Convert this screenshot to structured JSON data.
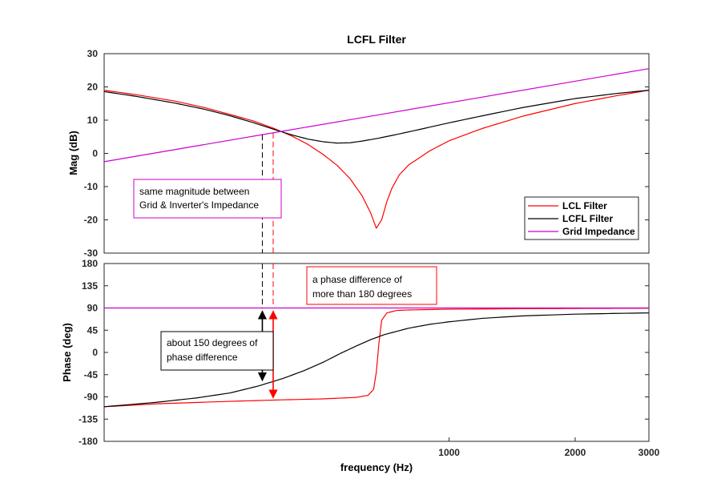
{
  "chart_data": [
    {
      "type": "line",
      "title": "LCFL Filter",
      "xlabel": "",
      "ylabel": "Mag (dB)",
      "xscale": "log",
      "xlim": [
        150,
        3000
      ],
      "ylim": [
        -30,
        30
      ],
      "yticks": [
        30,
        20,
        10,
        0,
        -10,
        -20,
        -30
      ],
      "tick_labels": [
        "30",
        "20",
        "10",
        "0",
        "-10",
        "-20",
        "-30"
      ],
      "legend_placement": "lower-right",
      "grid": false,
      "series": [
        {
          "name": "LCL Filter",
          "color": "#ff0000",
          "x": [
            150,
            180,
            220,
            260,
            300,
            340,
            380,
            420,
            460,
            500,
            540,
            580,
            620,
            650,
            670,
            690,
            710,
            730,
            760,
            800,
            900,
            1000,
            1200,
            1500,
            2000,
            2500,
            3000
          ],
          "y": [
            19,
            17.6,
            15.8,
            13.8,
            11.7,
            9.8,
            7.6,
            5.3,
            2.7,
            -0.3,
            -3.6,
            -7.6,
            -12.8,
            -18,
            -22.5,
            -20,
            -14.5,
            -10.5,
            -6.5,
            -3.5,
            0.8,
            3.8,
            7.5,
            11.2,
            15,
            17.3,
            19
          ]
        },
        {
          "name": "LCFL Filter",
          "color": "#000000",
          "x": [
            150,
            180,
            220,
            260,
            300,
            340,
            380,
            420,
            460,
            500,
            540,
            580,
            620,
            680,
            750,
            850,
            1000,
            1200,
            1500,
            2000,
            2500,
            3000
          ],
          "y": [
            18.6,
            17.1,
            15.2,
            13.3,
            11.3,
            9.3,
            7.3,
            5.6,
            4.3,
            3.5,
            3.1,
            3.2,
            3.7,
            4.6,
            5.7,
            7.2,
            9.2,
            11.3,
            13.8,
            16.5,
            18,
            19
          ]
        },
        {
          "name": "Grid Impedance",
          "color": "#cc00cc",
          "x": [
            150,
            3000
          ],
          "y": [
            -2.5,
            25.5
          ]
        }
      ],
      "annotations": [
        {
          "text_lines": [
            "same magnitude between",
            "Grid & Inverter's Impedance"
          ],
          "box_color": "#cc00cc"
        }
      ],
      "markers": [
        {
          "type": "vline",
          "x": 358,
          "color": "#000000"
        },
        {
          "type": "vline",
          "x": 380,
          "color": "#ff0000"
        }
      ]
    },
    {
      "type": "line",
      "xlabel": "frequency  (Hz)",
      "ylabel": "Phase (deg)",
      "xscale": "log",
      "xlim": [
        150,
        3000
      ],
      "xticks": [
        1000,
        2000,
        3000
      ],
      "xtick_labels": [
        "1000",
        "2000",
        "3000"
      ],
      "ylim": [
        -180,
        180
      ],
      "yticks": [
        180,
        135,
        90,
        45,
        0,
        -45,
        -90,
        -135,
        -180
      ],
      "tick_labels": [
        "180",
        "135",
        "90",
        "45",
        "0",
        "-45",
        "-90",
        "-135",
        "-180"
      ],
      "grid": false,
      "series": [
        {
          "name": "LCL Filter",
          "color": "#ff0000",
          "x": [
            150,
            200,
            300,
            400,
            500,
            600,
            640,
            660,
            670,
            680,
            690,
            710,
            750,
            800,
            1000,
            1500,
            2000,
            3000
          ],
          "y": [
            -110,
            -104,
            -99,
            -96,
            -94,
            -91,
            -87,
            -75,
            -40,
            20,
            65,
            80,
            85,
            86,
            87.5,
            88.5,
            89,
            89.5
          ]
        },
        {
          "name": "LCFL Filter",
          "color": "#000000",
          "x": [
            150,
            200,
            250,
            300,
            350,
            400,
            450,
            500,
            550,
            600,
            650,
            700,
            800,
            900,
            1000,
            1200,
            1500,
            2000,
            2500,
            3000
          ],
          "y": [
            -110,
            -101,
            -92,
            -82,
            -68,
            -53,
            -37,
            -20,
            -2,
            13,
            26,
            36,
            49,
            57,
            62,
            69,
            74,
            77.5,
            79,
            80
          ]
        },
        {
          "name": "Grid Impedance",
          "color": "#cc00cc",
          "x": [
            150,
            3000
          ],
          "y": [
            90,
            90
          ]
        }
      ],
      "annotations": [
        {
          "text_lines": [
            "a phase difference of",
            "more than 180 degrees"
          ],
          "box_color": "#ff0000"
        },
        {
          "text_lines": [
            "about 150 degrees of",
            "phase difference"
          ],
          "box_color": "#000000"
        }
      ],
      "markers": [
        {
          "type": "vline",
          "x": 358,
          "color": "#000000"
        },
        {
          "type": "vline",
          "x": 380,
          "color": "#ff0000"
        },
        {
          "type": "double-arrow",
          "x": 358,
          "y_from": 90,
          "y_to": -60,
          "color": "#000000"
        },
        {
          "type": "double-arrow",
          "x": 380,
          "y_from": 90,
          "y_to": -95,
          "color": "#ff0000"
        }
      ]
    }
  ]
}
